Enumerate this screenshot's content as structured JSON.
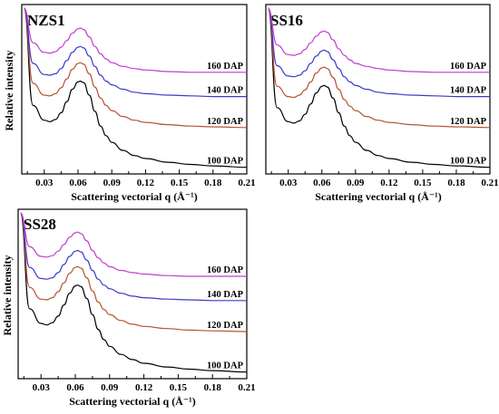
{
  "chart_data": [
    {
      "type": "line",
      "title": "NZS1",
      "xlabel": "Scattering vectorial q (Å⁻¹)",
      "ylabel": "Relative intensity",
      "xlim": [
        0.01,
        0.21
      ],
      "xticks": [
        "0.03",
        "0.06",
        "0.09",
        "0.12",
        "0.15",
        "0.18",
        "0.21"
      ],
      "yticks": "unlabeled",
      "grid": false,
      "legend": "series labels placed at right end of each curve",
      "series": [
        {
          "name": "100 DAP",
          "color": "#000000",
          "x": [
            0.012,
            0.02,
            0.03,
            0.035,
            0.04,
            0.045,
            0.05,
            0.055,
            0.06,
            0.062,
            0.065,
            0.07,
            0.075,
            0.08,
            0.085,
            0.09,
            0.1,
            0.11,
            0.12,
            0.14,
            0.16,
            0.18,
            0.21
          ],
          "y": [
            2.6,
            0.88,
            0.68,
            0.66,
            0.69,
            0.78,
            0.93,
            1.1,
            1.2,
            1.21,
            1.19,
            1.02,
            0.8,
            0.6,
            0.47,
            0.38,
            0.27,
            0.2,
            0.16,
            0.11,
            0.08,
            0.06,
            0.04
          ]
        },
        {
          "name": "120 DAP",
          "color": "#b5532f",
          "x": [
            0.012,
            0.02,
            0.03,
            0.035,
            0.04,
            0.045,
            0.05,
            0.055,
            0.06,
            0.062,
            0.065,
            0.07,
            0.075,
            0.08,
            0.085,
            0.09,
            0.1,
            0.11,
            0.12,
            0.14,
            0.16,
            0.18,
            0.21
          ],
          "y": [
            2.6,
            1.18,
            1.02,
            1.01,
            1.04,
            1.12,
            1.24,
            1.37,
            1.45,
            1.46,
            1.44,
            1.31,
            1.13,
            0.98,
            0.88,
            0.81,
            0.73,
            0.68,
            0.65,
            0.62,
            0.6,
            0.59,
            0.58
          ]
        },
        {
          "name": "140 DAP",
          "color": "#3a3ac8",
          "x": [
            0.012,
            0.02,
            0.03,
            0.035,
            0.04,
            0.045,
            0.05,
            0.055,
            0.06,
            0.062,
            0.065,
            0.07,
            0.075,
            0.08,
            0.085,
            0.09,
            0.1,
            0.11,
            0.12,
            0.14,
            0.16,
            0.18,
            0.21
          ],
          "y": [
            2.6,
            1.45,
            1.3,
            1.29,
            1.31,
            1.38,
            1.49,
            1.6,
            1.67,
            1.68,
            1.66,
            1.55,
            1.41,
            1.29,
            1.21,
            1.16,
            1.1,
            1.06,
            1.04,
            1.02,
            1.01,
            1.0,
            1.0
          ]
        },
        {
          "name": "160 DAP",
          "color": "#c23ccf",
          "x": [
            0.012,
            0.02,
            0.03,
            0.035,
            0.04,
            0.045,
            0.05,
            0.055,
            0.06,
            0.062,
            0.065,
            0.07,
            0.075,
            0.08,
            0.085,
            0.09,
            0.1,
            0.11,
            0.12,
            0.14,
            0.16,
            0.18,
            0.21
          ],
          "y": [
            2.6,
            1.73,
            1.6,
            1.59,
            1.61,
            1.67,
            1.76,
            1.86,
            1.92,
            1.93,
            1.91,
            1.81,
            1.68,
            1.58,
            1.51,
            1.46,
            1.41,
            1.38,
            1.36,
            1.34,
            1.33,
            1.33,
            1.33
          ]
        }
      ]
    },
    {
      "type": "line",
      "title": "SS16",
      "xlabel": "Scattering vectorial q (Å⁻¹)",
      "ylabel": "",
      "xlim": [
        0.01,
        0.21
      ],
      "xticks": [
        "0.03",
        "0.06",
        "0.09",
        "0.12",
        "0.15",
        "0.18",
        "0.21"
      ],
      "yticks": "unlabeled",
      "grid": false,
      "legend": "series labels placed at right end of each curve",
      "series": [
        {
          "name": "100 DAP",
          "color": "#000000",
          "x": [
            0.012,
            0.02,
            0.03,
            0.035,
            0.04,
            0.045,
            0.05,
            0.055,
            0.06,
            0.062,
            0.065,
            0.07,
            0.075,
            0.08,
            0.085,
            0.09,
            0.1,
            0.11,
            0.12,
            0.14,
            0.16,
            0.18,
            0.21
          ],
          "y": [
            2.6,
            0.85,
            0.66,
            0.64,
            0.67,
            0.76,
            0.9,
            1.05,
            1.14,
            1.15,
            1.13,
            0.98,
            0.78,
            0.6,
            0.47,
            0.38,
            0.27,
            0.2,
            0.16,
            0.11,
            0.08,
            0.06,
            0.04
          ]
        },
        {
          "name": "120 DAP",
          "color": "#b5532f",
          "x": [
            0.012,
            0.02,
            0.03,
            0.035,
            0.04,
            0.045,
            0.05,
            0.055,
            0.06,
            0.062,
            0.065,
            0.07,
            0.075,
            0.08,
            0.085,
            0.09,
            0.1,
            0.11,
            0.12,
            0.14,
            0.16,
            0.18,
            0.21
          ],
          "y": [
            2.6,
            1.14,
            1.0,
            0.99,
            1.02,
            1.09,
            1.2,
            1.32,
            1.39,
            1.4,
            1.38,
            1.26,
            1.1,
            0.96,
            0.87,
            0.81,
            0.73,
            0.68,
            0.65,
            0.62,
            0.6,
            0.59,
            0.58
          ]
        },
        {
          "name": "140 DAP",
          "color": "#3a3ac8",
          "x": [
            0.012,
            0.02,
            0.03,
            0.035,
            0.04,
            0.045,
            0.05,
            0.055,
            0.06,
            0.062,
            0.065,
            0.07,
            0.075,
            0.08,
            0.085,
            0.09,
            0.1,
            0.11,
            0.12,
            0.14,
            0.16,
            0.18,
            0.21
          ],
          "y": [
            2.6,
            1.42,
            1.28,
            1.27,
            1.29,
            1.35,
            1.45,
            1.55,
            1.62,
            1.63,
            1.61,
            1.5,
            1.38,
            1.27,
            1.2,
            1.15,
            1.1,
            1.06,
            1.04,
            1.02,
            1.01,
            1.0,
            1.0
          ]
        },
        {
          "name": "160 DAP",
          "color": "#c23ccf",
          "x": [
            0.012,
            0.02,
            0.03,
            0.035,
            0.04,
            0.045,
            0.05,
            0.055,
            0.06,
            0.062,
            0.065,
            0.07,
            0.075,
            0.08,
            0.085,
            0.09,
            0.1,
            0.11,
            0.12,
            0.14,
            0.16,
            0.18,
            0.21
          ],
          "y": [
            2.6,
            1.7,
            1.57,
            1.56,
            1.58,
            1.64,
            1.73,
            1.82,
            1.88,
            1.89,
            1.87,
            1.77,
            1.65,
            1.56,
            1.5,
            1.45,
            1.41,
            1.38,
            1.36,
            1.34,
            1.33,
            1.33,
            1.33
          ]
        }
      ]
    },
    {
      "type": "line",
      "title": "SS28",
      "xlabel": "Scattering vectorial q (Å⁻¹)",
      "ylabel": "Relative intensity",
      "xlim": [
        0.01,
        0.21
      ],
      "xticks": [
        "0.03",
        "0.06",
        "0.09",
        "0.12",
        "0.15",
        "0.18",
        "0.21"
      ],
      "yticks": "unlabeled",
      "grid": false,
      "legend": "series labels placed at right end of each curve",
      "series": [
        {
          "name": "100 DAP",
          "color": "#000000",
          "x": [
            0.012,
            0.02,
            0.03,
            0.035,
            0.04,
            0.045,
            0.05,
            0.055,
            0.06,
            0.062,
            0.065,
            0.07,
            0.075,
            0.08,
            0.085,
            0.09,
            0.1,
            0.11,
            0.12,
            0.14,
            0.16,
            0.18,
            0.21
          ],
          "y": [
            2.6,
            0.9,
            0.7,
            0.68,
            0.71,
            0.8,
            0.95,
            1.11,
            1.21,
            1.22,
            1.2,
            1.04,
            0.82,
            0.62,
            0.48,
            0.39,
            0.28,
            0.21,
            0.16,
            0.11,
            0.08,
            0.06,
            0.04
          ]
        },
        {
          "name": "120 DAP",
          "color": "#b5532f",
          "x": [
            0.012,
            0.02,
            0.03,
            0.035,
            0.04,
            0.045,
            0.05,
            0.055,
            0.06,
            0.062,
            0.065,
            0.07,
            0.075,
            0.08,
            0.085,
            0.09,
            0.1,
            0.11,
            0.12,
            0.14,
            0.16,
            0.18,
            0.21
          ],
          "y": [
            2.6,
            1.19,
            1.03,
            1.02,
            1.05,
            1.13,
            1.25,
            1.38,
            1.46,
            1.47,
            1.45,
            1.32,
            1.14,
            0.99,
            0.89,
            0.82,
            0.74,
            0.69,
            0.66,
            0.63,
            0.61,
            0.6,
            0.59
          ]
        },
        {
          "name": "140 DAP",
          "color": "#3a3ac8",
          "x": [
            0.012,
            0.02,
            0.03,
            0.035,
            0.04,
            0.045,
            0.05,
            0.055,
            0.06,
            0.062,
            0.065,
            0.07,
            0.075,
            0.08,
            0.085,
            0.09,
            0.1,
            0.11,
            0.12,
            0.14,
            0.16,
            0.18,
            0.21
          ],
          "y": [
            2.6,
            1.46,
            1.31,
            1.3,
            1.32,
            1.39,
            1.5,
            1.61,
            1.68,
            1.69,
            1.67,
            1.56,
            1.42,
            1.3,
            1.22,
            1.17,
            1.11,
            1.07,
            1.05,
            1.03,
            1.02,
            1.01,
            1.01
          ]
        },
        {
          "name": "160 DAP",
          "color": "#c23ccf",
          "x": [
            0.012,
            0.02,
            0.03,
            0.035,
            0.04,
            0.045,
            0.05,
            0.055,
            0.06,
            0.062,
            0.065,
            0.07,
            0.075,
            0.08,
            0.085,
            0.09,
            0.1,
            0.11,
            0.12,
            0.14,
            0.16,
            0.18,
            0.21
          ],
          "y": [
            2.6,
            1.74,
            1.61,
            1.6,
            1.62,
            1.68,
            1.77,
            1.87,
            1.93,
            1.94,
            1.92,
            1.82,
            1.69,
            1.59,
            1.52,
            1.47,
            1.42,
            1.39,
            1.37,
            1.35,
            1.34,
            1.34,
            1.34
          ]
        }
      ]
    }
  ]
}
